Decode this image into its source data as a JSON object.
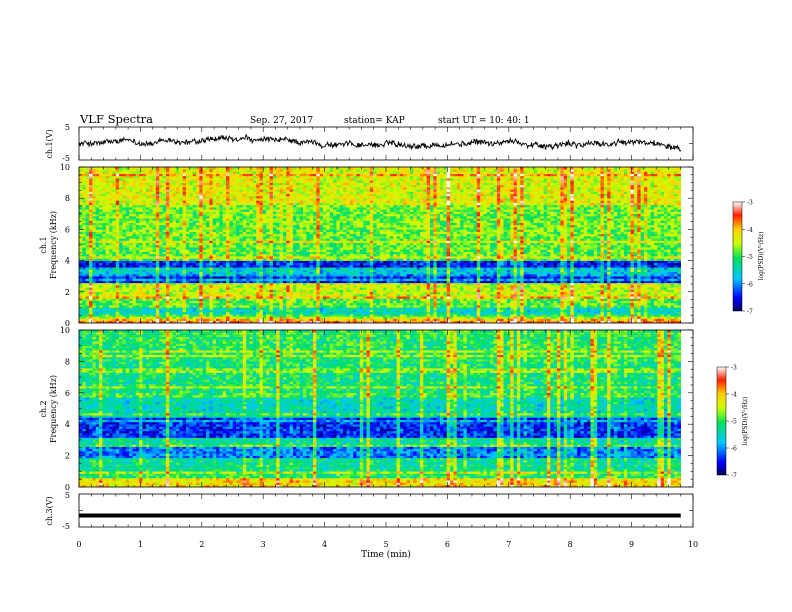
{
  "header": {
    "title": "VLF Spectra",
    "date": "Sep. 27, 2017",
    "station": "station= KAP",
    "start": "start  UT =   10: 40: 1"
  },
  "chart_data": [
    {
      "type": "line",
      "name": "ch1-voltage",
      "ylabel": "ch.1(V)",
      "ylim": [
        -5,
        5
      ],
      "y_ticks": [
        "-5",
        "5"
      ],
      "xlim": [
        0,
        10
      ],
      "x_extent": 9.8,
      "level": 0,
      "amplitude": 1.6
    },
    {
      "type": "heatmap",
      "name": "ch1-spectrogram",
      "ylabel_channel": "ch.1",
      "ylabel": "Frequency (kHz)",
      "ylim": [
        0,
        10
      ],
      "y_ticks": [
        "0",
        "2",
        "4",
        "6",
        "8",
        "10"
      ],
      "xlim": [
        0,
        10
      ],
      "x_extent": 9.8,
      "bands": [
        {
          "f0": 0.0,
          "f1": 0.3,
          "v": -4.2
        },
        {
          "f0": 0.3,
          "f1": 0.6,
          "v": -5.2
        },
        {
          "f0": 0.6,
          "f1": 1.0,
          "v": -5.6
        },
        {
          "f0": 1.0,
          "f1": 1.6,
          "v": -5.0
        },
        {
          "f0": 1.6,
          "f1": 2.6,
          "v": -4.6
        },
        {
          "f0": 2.6,
          "f1": 3.2,
          "v": -6.6
        },
        {
          "f0": 3.2,
          "f1": 3.6,
          "v": -5.8
        },
        {
          "f0": 3.6,
          "f1": 4.0,
          "v": -6.6
        },
        {
          "f0": 4.0,
          "f1": 5.6,
          "v": -5.0
        },
        {
          "f0": 5.6,
          "f1": 7.6,
          "v": -4.9
        },
        {
          "f0": 7.6,
          "f1": 10.0,
          "v": -4.5
        }
      ],
      "colorbar": {
        "label": "log(PSD)(V²/Hz)",
        "range": [
          -7,
          -3
        ],
        "ticks": [
          "-3",
          "-4",
          "-5",
          "-6",
          "-7"
        ]
      }
    },
    {
      "type": "heatmap",
      "name": "ch2-spectrogram",
      "ylabel_channel": "ch.2",
      "ylabel": "Frequency (kHz)",
      "ylim": [
        0,
        10
      ],
      "y_ticks": [
        "0",
        "2",
        "4",
        "6",
        "8",
        "10"
      ],
      "xlim": [
        0,
        10
      ],
      "x_extent": 9.8,
      "bands": [
        {
          "f0": 0.0,
          "f1": 0.5,
          "v": -4.3
        },
        {
          "f0": 0.5,
          "f1": 1.0,
          "v": -5.2
        },
        {
          "f0": 1.0,
          "f1": 1.8,
          "v": -5.4
        },
        {
          "f0": 1.8,
          "f1": 2.5,
          "v": -6.2
        },
        {
          "f0": 2.5,
          "f1": 3.2,
          "v": -5.5
        },
        {
          "f0": 3.2,
          "f1": 4.4,
          "v": -6.5
        },
        {
          "f0": 4.4,
          "f1": 6.0,
          "v": -5.6
        },
        {
          "f0": 6.0,
          "f1": 8.0,
          "v": -5.3
        },
        {
          "f0": 8.0,
          "f1": 10.0,
          "v": -5.2
        }
      ],
      "colorbar": {
        "label": "log(PSD)(V²/Hz)",
        "range": [
          -7,
          -3
        ],
        "ticks": [
          "-3",
          "-4",
          "-5",
          "-6",
          "-7"
        ]
      }
    },
    {
      "type": "line",
      "name": "ch3-voltage",
      "ylabel": "ch.3(V)",
      "ylim": [
        -5,
        5
      ],
      "y_ticks": [
        "-5",
        "5"
      ],
      "xlim": [
        0,
        10
      ],
      "x_extent": 9.8,
      "level": -1.5,
      "amplitude": 0.0
    }
  ],
  "x_axis": {
    "label": "Time (min)",
    "range": [
      0,
      10
    ],
    "ticks": [
      "0",
      "1",
      "2",
      "3",
      "4",
      "5",
      "6",
      "7",
      "8",
      "9",
      "10"
    ]
  }
}
